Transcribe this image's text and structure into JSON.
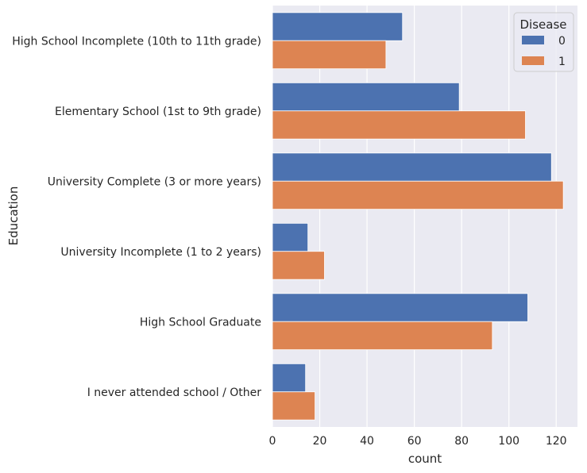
{
  "chart_data": {
    "type": "bar",
    "orientation": "horizontal",
    "categories": [
      "High School Incomplete (10th to 11th grade)",
      "Elementary School (1st to 9th grade)",
      "University Complete (3 or more years)",
      "University Incomplete (1 to 2 years)",
      "High School Graduate",
      "I never attended school / Other"
    ],
    "series": [
      {
        "name": "0",
        "color": "#4c72b0",
        "values": [
          55,
          79,
          118,
          15,
          108,
          14
        ]
      },
      {
        "name": "1",
        "color": "#dd8452",
        "values": [
          48,
          107,
          123,
          22,
          93,
          18
        ]
      }
    ],
    "xlabel": "count",
    "ylabel": "Education",
    "xlim": [
      0,
      129
    ],
    "xticks": [
      0,
      20,
      40,
      60,
      80,
      100,
      120
    ],
    "grid": true,
    "legend": {
      "title": "Disease",
      "position": "top-right"
    },
    "background_color": "#eaeaf2",
    "grid_color": "#ffffff"
  }
}
